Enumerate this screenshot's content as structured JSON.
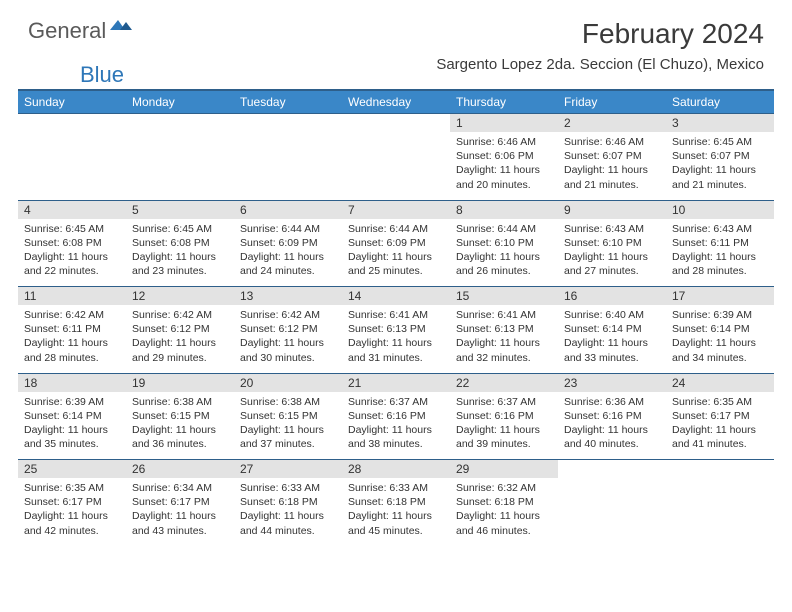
{
  "logo": {
    "text1": "General",
    "text2": "Blue"
  },
  "title": "February 2024",
  "location": "Sargento Lopez 2da. Seccion (El Chuzo), Mexico",
  "colors": {
    "header_bg": "#3a87c8",
    "header_border": "#2e5f8a",
    "daynum_bg": "#e3e3e3",
    "logo_gray": "#5a5a5a",
    "logo_blue": "#2e77b8",
    "text": "#333333"
  },
  "weekdays": [
    "Sunday",
    "Monday",
    "Tuesday",
    "Wednesday",
    "Thursday",
    "Friday",
    "Saturday"
  ],
  "weeks": [
    [
      null,
      null,
      null,
      null,
      {
        "n": "1",
        "sr": "6:46 AM",
        "ss": "6:06 PM",
        "dl": "11 hours and 20 minutes."
      },
      {
        "n": "2",
        "sr": "6:46 AM",
        "ss": "6:07 PM",
        "dl": "11 hours and 21 minutes."
      },
      {
        "n": "3",
        "sr": "6:45 AM",
        "ss": "6:07 PM",
        "dl": "11 hours and 21 minutes."
      }
    ],
    [
      {
        "n": "4",
        "sr": "6:45 AM",
        "ss": "6:08 PM",
        "dl": "11 hours and 22 minutes."
      },
      {
        "n": "5",
        "sr": "6:45 AM",
        "ss": "6:08 PM",
        "dl": "11 hours and 23 minutes."
      },
      {
        "n": "6",
        "sr": "6:44 AM",
        "ss": "6:09 PM",
        "dl": "11 hours and 24 minutes."
      },
      {
        "n": "7",
        "sr": "6:44 AM",
        "ss": "6:09 PM",
        "dl": "11 hours and 25 minutes."
      },
      {
        "n": "8",
        "sr": "6:44 AM",
        "ss": "6:10 PM",
        "dl": "11 hours and 26 minutes."
      },
      {
        "n": "9",
        "sr": "6:43 AM",
        "ss": "6:10 PM",
        "dl": "11 hours and 27 minutes."
      },
      {
        "n": "10",
        "sr": "6:43 AM",
        "ss": "6:11 PM",
        "dl": "11 hours and 28 minutes."
      }
    ],
    [
      {
        "n": "11",
        "sr": "6:42 AM",
        "ss": "6:11 PM",
        "dl": "11 hours and 28 minutes."
      },
      {
        "n": "12",
        "sr": "6:42 AM",
        "ss": "6:12 PM",
        "dl": "11 hours and 29 minutes."
      },
      {
        "n": "13",
        "sr": "6:42 AM",
        "ss": "6:12 PM",
        "dl": "11 hours and 30 minutes."
      },
      {
        "n": "14",
        "sr": "6:41 AM",
        "ss": "6:13 PM",
        "dl": "11 hours and 31 minutes."
      },
      {
        "n": "15",
        "sr": "6:41 AM",
        "ss": "6:13 PM",
        "dl": "11 hours and 32 minutes."
      },
      {
        "n": "16",
        "sr": "6:40 AM",
        "ss": "6:14 PM",
        "dl": "11 hours and 33 minutes."
      },
      {
        "n": "17",
        "sr": "6:39 AM",
        "ss": "6:14 PM",
        "dl": "11 hours and 34 minutes."
      }
    ],
    [
      {
        "n": "18",
        "sr": "6:39 AM",
        "ss": "6:14 PM",
        "dl": "11 hours and 35 minutes."
      },
      {
        "n": "19",
        "sr": "6:38 AM",
        "ss": "6:15 PM",
        "dl": "11 hours and 36 minutes."
      },
      {
        "n": "20",
        "sr": "6:38 AM",
        "ss": "6:15 PM",
        "dl": "11 hours and 37 minutes."
      },
      {
        "n": "21",
        "sr": "6:37 AM",
        "ss": "6:16 PM",
        "dl": "11 hours and 38 minutes."
      },
      {
        "n": "22",
        "sr": "6:37 AM",
        "ss": "6:16 PM",
        "dl": "11 hours and 39 minutes."
      },
      {
        "n": "23",
        "sr": "6:36 AM",
        "ss": "6:16 PM",
        "dl": "11 hours and 40 minutes."
      },
      {
        "n": "24",
        "sr": "6:35 AM",
        "ss": "6:17 PM",
        "dl": "11 hours and 41 minutes."
      }
    ],
    [
      {
        "n": "25",
        "sr": "6:35 AM",
        "ss": "6:17 PM",
        "dl": "11 hours and 42 minutes."
      },
      {
        "n": "26",
        "sr": "6:34 AM",
        "ss": "6:17 PM",
        "dl": "11 hours and 43 minutes."
      },
      {
        "n": "27",
        "sr": "6:33 AM",
        "ss": "6:18 PM",
        "dl": "11 hours and 44 minutes."
      },
      {
        "n": "28",
        "sr": "6:33 AM",
        "ss": "6:18 PM",
        "dl": "11 hours and 45 minutes."
      },
      {
        "n": "29",
        "sr": "6:32 AM",
        "ss": "6:18 PM",
        "dl": "11 hours and 46 minutes."
      },
      null,
      null
    ]
  ],
  "labels": {
    "sunrise": "Sunrise:",
    "sunset": "Sunset:",
    "daylight": "Daylight:"
  }
}
